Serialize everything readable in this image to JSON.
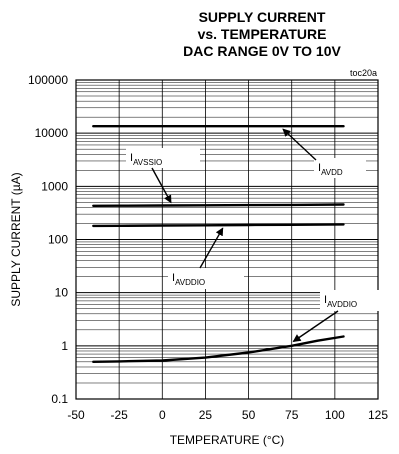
{
  "chart_data": {
    "type": "line",
    "title_lines": [
      "SUPPLY CURRENT",
      "vs. TEMPERATURE",
      "DAC RANGE 0V TO 10V"
    ],
    "tag": "toc20a",
    "xlabel": "TEMPERATURE (°C)",
    "ylabel": "SUPPLY CURRENT (µA)",
    "xlim": [
      -50,
      125
    ],
    "ylim": [
      0.1,
      100000
    ],
    "y_scale": "log",
    "x_ticks": [
      "-50",
      "-25",
      "0",
      "25",
      "50",
      "75",
      "100",
      "125"
    ],
    "y_ticks": [
      "0.1",
      "1",
      "10",
      "100",
      "1000",
      "10000",
      "100000"
    ],
    "grid": true,
    "series": [
      {
        "name_main": "I",
        "name_sub": "AVDD",
        "x": [
          -40,
          -25,
          0,
          25,
          50,
          75,
          105
        ],
        "y": [
          13500,
          13500,
          13500,
          13500,
          13500,
          13500,
          13500
        ]
      },
      {
        "name_main": "I",
        "name_sub": "AVSSIO",
        "x": [
          -40,
          -25,
          0,
          25,
          50,
          75,
          105
        ],
        "y": [
          430,
          432,
          436,
          440,
          444,
          448,
          455
        ]
      },
      {
        "name_main": "I",
        "name_sub": "AVDDIO",
        "x": [
          -40,
          -25,
          0,
          25,
          50,
          75,
          105
        ],
        "y": [
          180,
          181,
          183,
          185,
          187,
          189,
          192
        ]
      },
      {
        "name_main": "I",
        "name_sub": "AVDDIO",
        "x": [
          -40,
          -25,
          0,
          25,
          50,
          75,
          90,
          105
        ],
        "y": [
          0.5,
          0.51,
          0.53,
          0.6,
          0.75,
          1.0,
          1.25,
          1.5
        ]
      }
    ]
  }
}
